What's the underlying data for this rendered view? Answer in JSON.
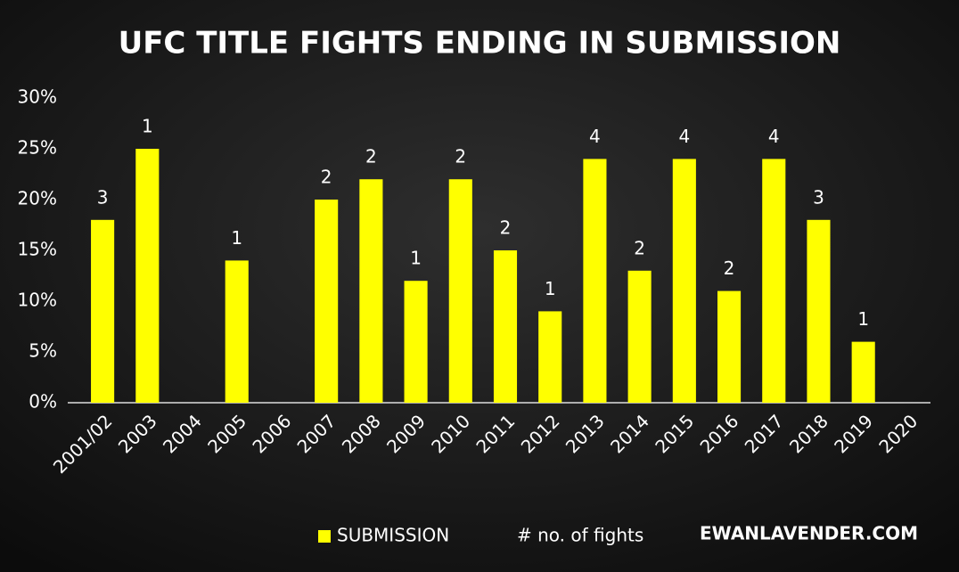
{
  "chart_data": {
    "type": "bar",
    "title": "UFC TITLE FIGHTS ENDING IN SUBMISSION",
    "categories": [
      "2001/02",
      "2003",
      "2004",
      "2005",
      "2006",
      "2007",
      "2008",
      "2009",
      "2010",
      "2011",
      "2012",
      "2013",
      "2014",
      "2015",
      "2016",
      "2017",
      "2018",
      "2019",
      "2020"
    ],
    "series": [
      {
        "name": "SUBMISSION",
        "color": "#ffff00",
        "values": [
          18,
          25,
          null,
          14,
          null,
          20,
          22,
          12,
          22,
          15,
          9,
          24,
          13,
          24,
          11,
          24,
          18,
          6,
          null
        ]
      }
    ],
    "fights_legend": "# no. of fights",
    "fights": [
      3,
      1,
      null,
      1,
      null,
      2,
      2,
      1,
      2,
      2,
      1,
      4,
      2,
      4,
      2,
      4,
      3,
      1,
      null
    ],
    "source": "EWANLAVENDER.COM",
    "ylim": [
      0,
      30
    ],
    "yticks": [
      {
        "value": 0,
        "label": "0%"
      },
      {
        "value": 5,
        "label": "5%"
      },
      {
        "value": 10,
        "label": "10%"
      },
      {
        "value": 15,
        "label": "15%"
      },
      {
        "value": 20,
        "label": "20%"
      },
      {
        "value": 25,
        "label": "25%"
      },
      {
        "value": 30,
        "label": "30%"
      }
    ],
    "grid": false
  }
}
